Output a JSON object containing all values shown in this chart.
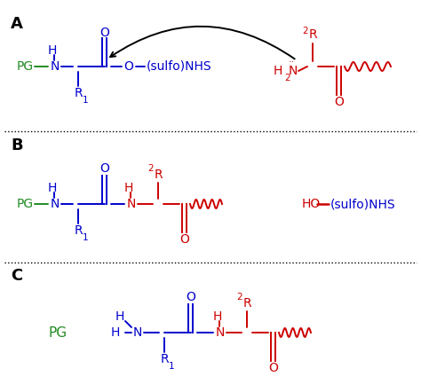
{
  "bg_color": "#ffffff",
  "blue": "#0000cc",
  "red": "#cc0000",
  "green": "#228B22",
  "black": "#000000",
  "label_A": "A",
  "label_B": "B",
  "label_C": "C",
  "label_PG": "PG",
  "label_sulfoNHS": "(sulfo)NHS",
  "label_HO_sulfoNHS": "HO—(sulfo)NHS"
}
